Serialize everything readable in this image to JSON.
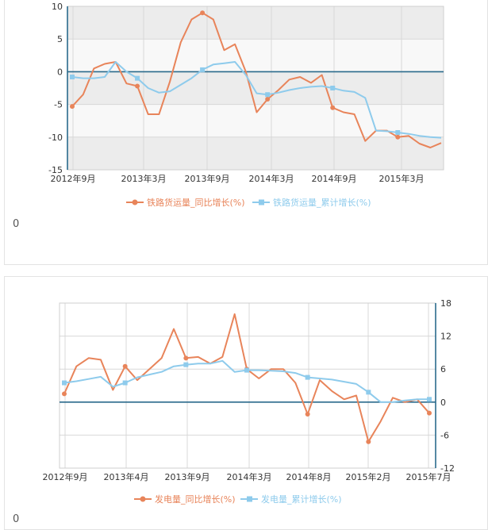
{
  "chart_data": [
    {
      "type": "line",
      "ylim": [
        -15,
        10
      ],
      "y_ticks": [
        "10",
        "5",
        "0",
        "-5",
        "-10",
        "-15"
      ],
      "x_tick_labels": [
        "2012年9月",
        "2013年3月",
        "2013年9月",
        "2014年3月",
        "2014年9月",
        "2015年3月"
      ],
      "series": [
        {
          "name": "铁路货运量_同比增长(%)",
          "color": "#e8845a",
          "values": [
            -5.3,
            -3.5,
            0.5,
            1.2,
            1.5,
            -1.8,
            -2.2,
            -6.5,
            -6.5,
            -1.5,
            4.5,
            8.0,
            9.0,
            8.0,
            3.3,
            4.2,
            0.0,
            -6.2,
            -4.2,
            -2.8,
            -1.2,
            -0.8,
            -1.7,
            -0.5,
            -5.5,
            -6.2,
            -6.5,
            -10.6,
            -9.0,
            -9.0,
            -10.0,
            -9.8,
            -11.0,
            -11.6,
            -10.9
          ],
          "markers": [
            0,
            6,
            12,
            18,
            24,
            30
          ]
        },
        {
          "name": "铁路货运量_累计增长(%)",
          "color": "#8ecbec",
          "values": [
            -0.8,
            -1.0,
            -1.0,
            -0.8,
            1.5,
            0.0,
            -1.0,
            -2.5,
            -3.2,
            -3.0,
            -2.0,
            -1.0,
            0.3,
            1.1,
            1.3,
            1.5,
            -0.5,
            -3.3,
            -3.5,
            -3.2,
            -2.8,
            -2.5,
            -2.3,
            -2.2,
            -2.5,
            -2.9,
            -3.1,
            -4.0,
            -9.0,
            -9.1,
            -9.3,
            -9.5,
            -9.8,
            -10.0,
            -10.1
          ],
          "markers": [
            0,
            6,
            12,
            18,
            24,
            30
          ]
        }
      ]
    },
    {
      "type": "line",
      "ylim": [
        -12,
        18
      ],
      "y_ticks": [
        "18",
        "12",
        "6",
        "0",
        "-6",
        "-12"
      ],
      "x_tick_labels": [
        "2012年9月",
        "2013年4月",
        "2013年9月",
        "2014年3月",
        "2014年8月",
        "2015年2月",
        "2015年7月"
      ],
      "series": [
        {
          "name": "发电量_同比增长(%)",
          "color": "#e8845a",
          "values": [
            1.5,
            6.5,
            8.0,
            7.7,
            2.2,
            6.5,
            4.0,
            6.0,
            8.0,
            13.3,
            8.0,
            8.2,
            7.0,
            8.2,
            16.0,
            6.0,
            4.3,
            6.0,
            6.0,
            3.5,
            -2.2,
            4.0,
            2.0,
            0.5,
            1.2,
            -7.2,
            -3.5,
            0.8,
            0.0,
            0.5,
            -2.0
          ],
          "markers": [
            0,
            5,
            10,
            15,
            20,
            25,
            30
          ]
        },
        {
          "name": "发电量_累计增长(%)",
          "color": "#8ecbec",
          "values": [
            3.5,
            3.8,
            4.2,
            4.6,
            2.8,
            3.5,
            4.5,
            5.0,
            5.5,
            6.5,
            6.8,
            7.0,
            7.0,
            7.5,
            5.5,
            5.8,
            5.8,
            5.7,
            5.6,
            5.3,
            4.5,
            4.3,
            4.1,
            3.7,
            3.3,
            1.8,
            0.0,
            0.0,
            0.3,
            0.5,
            0.5
          ],
          "markers": [
            0,
            5,
            10,
            15,
            20,
            25,
            30
          ]
        }
      ]
    }
  ],
  "notes": [
    "0",
    "0"
  ]
}
